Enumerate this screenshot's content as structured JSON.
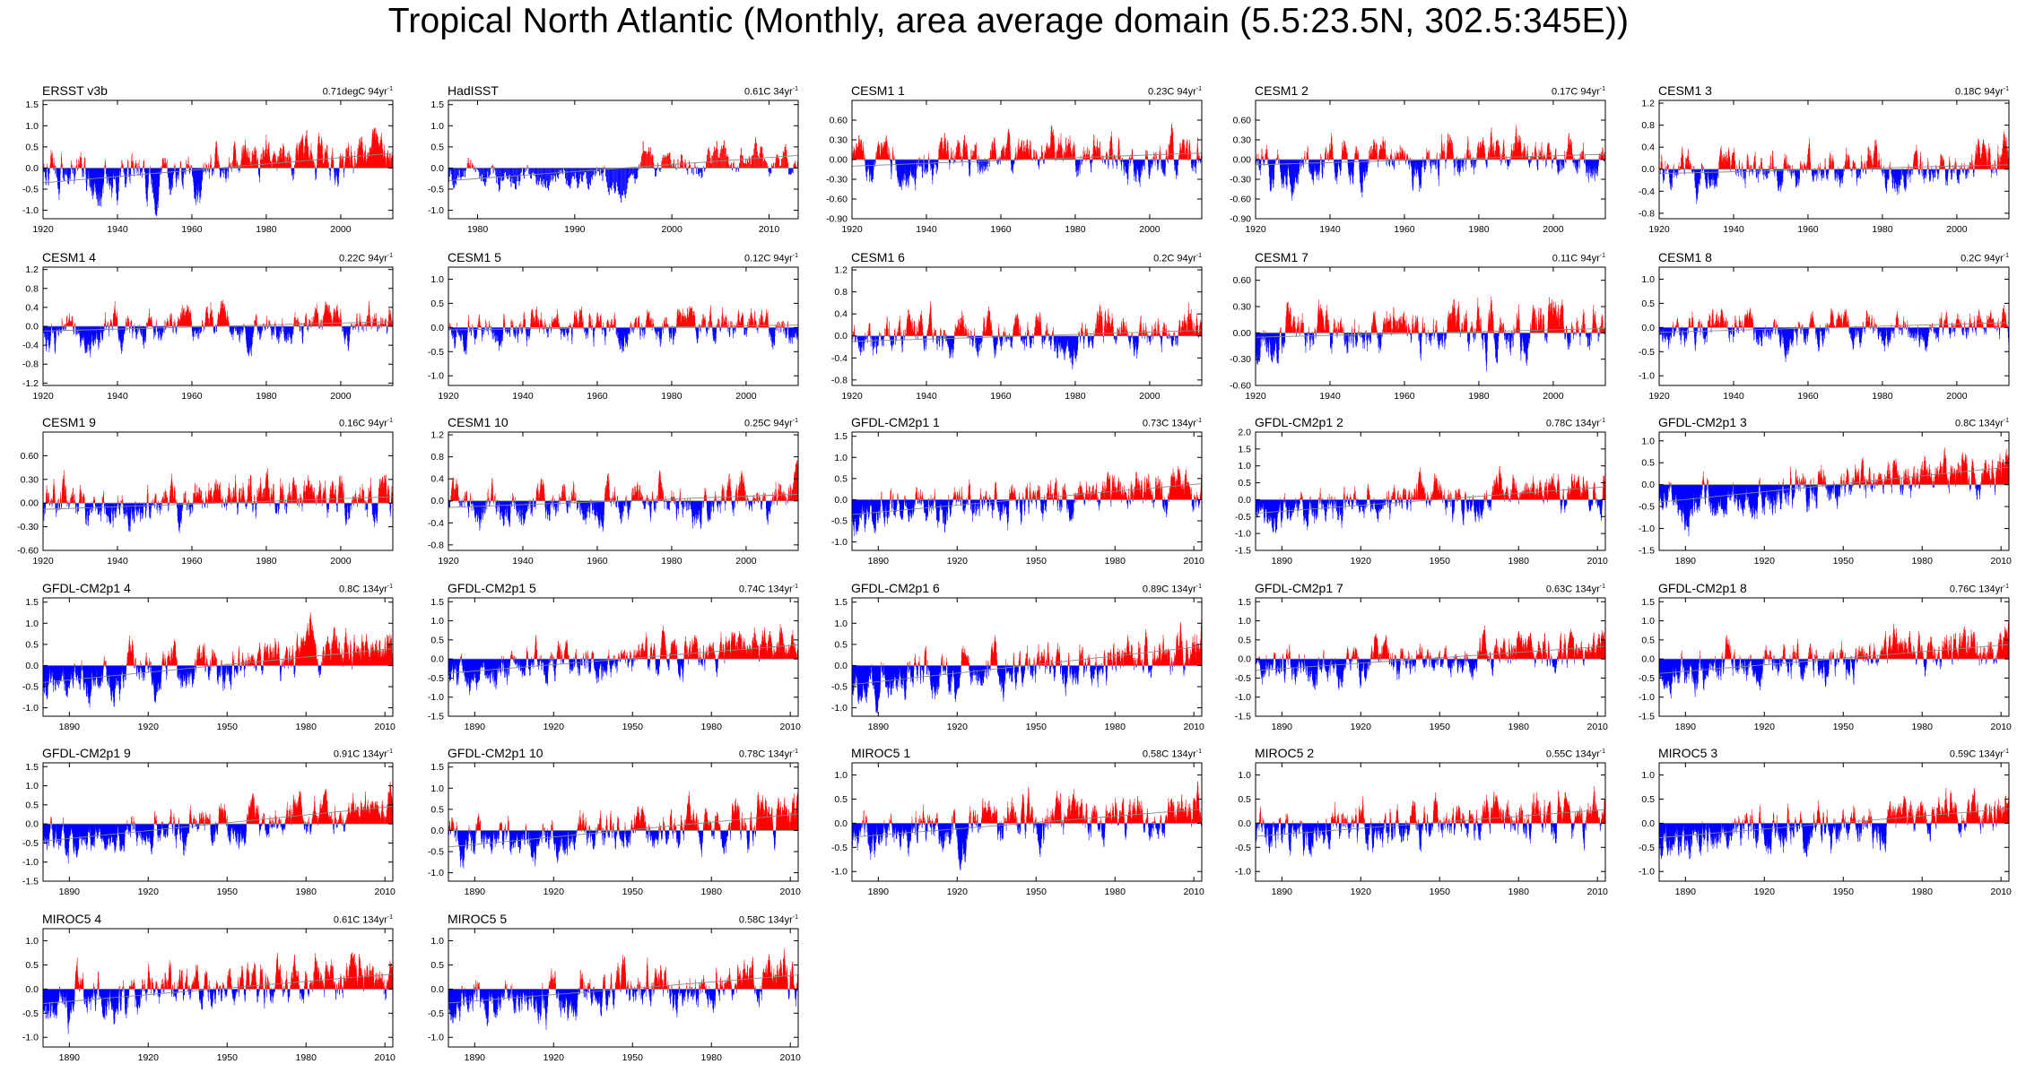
{
  "title": "Tropical North Atlantic (Monthly, area average domain (5.5:23.5N, 302.5:345E))",
  "colors": {
    "positive": "#ff0000",
    "negative": "#0000ff",
    "trend": "#888888",
    "axis": "#000000"
  },
  "chart_data": [
    {
      "type": "bar",
      "name": "ERSST v3b",
      "trend": "0.71degC 94yr",
      "trend_sup": "-1",
      "x_range": [
        1920,
        2014
      ],
      "ylim": [
        -1.2,
        1.6
      ],
      "yticks": [
        "1.5",
        "1.0",
        "0.5",
        "0.0",
        "-0.5",
        "-1.0"
      ],
      "ytick_values": [
        1.5,
        1.0,
        0.5,
        0.0,
        -0.5,
        -1.0
      ],
      "xticks": [
        1920,
        1940,
        1960,
        1980,
        2000
      ],
      "trend_start": -0.35,
      "trend_end": 0.35,
      "amplitude": 0.55,
      "seed": 1
    },
    {
      "type": "bar",
      "name": "HadISST",
      "trend": "0.61C 34yr",
      "trend_sup": "-1",
      "x_range": [
        1977,
        2013
      ],
      "ylim": [
        -1.2,
        1.6
      ],
      "yticks": [
        "1.5",
        "1.0",
        "0.5",
        "0.0",
        "-0.5",
        "-1.0"
      ],
      "ytick_values": [
        1.5,
        1.0,
        0.5,
        0.0,
        -0.5,
        -1.0
      ],
      "xticks": [
        1980,
        1990,
        2000,
        2010
      ],
      "trend_start": -0.3,
      "trend_end": 0.3,
      "amplitude": 0.5,
      "seed": 2
    },
    {
      "type": "bar",
      "name": "CESM1 1",
      "trend": "0.23C 94yr",
      "trend_sup": "-1",
      "x_range": [
        1920,
        2014
      ],
      "ylim": [
        -0.9,
        0.9
      ],
      "yticks": [
        "0.60",
        "0.30",
        "0.00",
        "-0.30",
        "-0.60",
        "-0.90"
      ],
      "ytick_values": [
        0.6,
        0.3,
        0.0,
        -0.3,
        -0.6,
        -0.9
      ],
      "xticks": [
        1920,
        1940,
        1960,
        1980,
        2000
      ],
      "trend_start": -0.1,
      "trend_end": 0.1,
      "amplitude": 0.35,
      "seed": 3
    },
    {
      "type": "bar",
      "name": "CESM1 2",
      "trend": "0.17C 94yr",
      "trend_sup": "-1",
      "x_range": [
        1920,
        2014
      ],
      "ylim": [
        -0.9,
        0.9
      ],
      "yticks": [
        "0.60",
        "0.30",
        "0.00",
        "-0.30",
        "-0.60",
        "-0.90"
      ],
      "ytick_values": [
        0.6,
        0.3,
        0.0,
        -0.3,
        -0.6,
        -0.9
      ],
      "xticks": [
        1920,
        1940,
        1960,
        1980,
        2000
      ],
      "trend_start": -0.08,
      "trend_end": 0.08,
      "amplitude": 0.35,
      "seed": 4
    },
    {
      "type": "bar",
      "name": "CESM1 3",
      "trend": "0.18C 94yr",
      "trend_sup": "-1",
      "x_range": [
        1920,
        2014
      ],
      "ylim": [
        -0.9,
        1.25
      ],
      "yticks": [
        "1.2",
        "0.8",
        "0.4",
        "0.0",
        "-0.4",
        "-0.8"
      ],
      "ytick_values": [
        1.2,
        0.8,
        0.4,
        0.0,
        -0.4,
        -0.8
      ],
      "xticks": [
        1920,
        1940,
        1960,
        1980,
        2000
      ],
      "trend_start": -0.08,
      "trend_end": 0.08,
      "amplitude": 0.4,
      "seed": 5
    },
    {
      "type": "bar",
      "name": "CESM1 4",
      "trend": "0.22C 94yr",
      "trend_sup": "-1",
      "x_range": [
        1920,
        2014
      ],
      "ylim": [
        -1.25,
        1.25
      ],
      "yticks": [
        "1.2",
        "0.8",
        "0.4",
        "0.0",
        "-0.4",
        "-0.8",
        "-1.2"
      ],
      "ytick_values": [
        1.2,
        0.8,
        0.4,
        0.0,
        -0.4,
        -0.8,
        -1.2
      ],
      "xticks": [
        1920,
        1940,
        1960,
        1980,
        2000
      ],
      "trend_start": -0.1,
      "trend_end": 0.1,
      "amplitude": 0.4,
      "seed": 6
    },
    {
      "type": "bar",
      "name": "CESM1 5",
      "trend": "0.12C 94yr",
      "trend_sup": "-1",
      "x_range": [
        1920,
        2014
      ],
      "ylim": [
        -1.2,
        1.25
      ],
      "yticks": [
        "1.0",
        "0.5",
        "0.0",
        "-0.5",
        "-1.0"
      ],
      "ytick_values": [
        1.0,
        0.5,
        0.0,
        -0.5,
        -1.0
      ],
      "xticks": [
        1920,
        1940,
        1960,
        1980,
        2000
      ],
      "trend_start": -0.05,
      "trend_end": 0.05,
      "amplitude": 0.4,
      "seed": 7
    },
    {
      "type": "bar",
      "name": "CESM1 6",
      "trend": "0.2C 94yr",
      "trend_sup": "-1",
      "x_range": [
        1920,
        2014
      ],
      "ylim": [
        -0.9,
        1.25
      ],
      "yticks": [
        "1.2",
        "0.8",
        "0.4",
        "0.0",
        "-0.4",
        "-0.8"
      ],
      "ytick_values": [
        1.2,
        0.8,
        0.4,
        0.0,
        -0.4,
        -0.8
      ],
      "xticks": [
        1920,
        1940,
        1960,
        1980,
        2000
      ],
      "trend_start": -0.1,
      "trend_end": 0.1,
      "amplitude": 0.4,
      "seed": 8
    },
    {
      "type": "bar",
      "name": "CESM1 7",
      "trend": "0.11C 94yr",
      "trend_sup": "-1",
      "x_range": [
        1920,
        2014
      ],
      "ylim": [
        -0.6,
        0.75
      ],
      "yticks": [
        "0.60",
        "0.30",
        "0.00",
        "-0.30",
        "-0.60"
      ],
      "ytick_values": [
        0.6,
        0.3,
        0.0,
        -0.3,
        -0.6
      ],
      "xticks": [
        1920,
        1940,
        1960,
        1980,
        2000
      ],
      "trend_start": -0.05,
      "trend_end": 0.05,
      "amplitude": 0.3,
      "seed": 9
    },
    {
      "type": "bar",
      "name": "CESM1 8",
      "trend": "0.2C 94yr",
      "trend_sup": "-1",
      "x_range": [
        1920,
        2014
      ],
      "ylim": [
        -1.2,
        1.25
      ],
      "yticks": [
        "1.0",
        "0.5",
        "0.0",
        "-0.5",
        "-1.0"
      ],
      "ytick_values": [
        1.0,
        0.5,
        0.0,
        -0.5,
        -1.0
      ],
      "xticks": [
        1920,
        1940,
        1960,
        1980,
        2000
      ],
      "trend_start": -0.1,
      "trend_end": 0.1,
      "amplitude": 0.4,
      "seed": 10
    },
    {
      "type": "bar",
      "name": "CESM1 9",
      "trend": "0.16C 94yr",
      "trend_sup": "-1",
      "x_range": [
        1920,
        2014
      ],
      "ylim": [
        -0.6,
        0.9
      ],
      "yticks": [
        "0.60",
        "0.30",
        "0.00",
        "-0.30",
        "-0.60"
      ],
      "ytick_values": [
        0.6,
        0.3,
        0.0,
        -0.3,
        -0.6
      ],
      "xticks": [
        1920,
        1940,
        1960,
        1980,
        2000
      ],
      "trend_start": -0.08,
      "trend_end": 0.08,
      "amplitude": 0.3,
      "seed": 11
    },
    {
      "type": "bar",
      "name": "CESM1 10",
      "trend": "0.25C 94yr",
      "trend_sup": "-1",
      "x_range": [
        1920,
        2014
      ],
      "ylim": [
        -0.9,
        1.25
      ],
      "yticks": [
        "1.2",
        "0.8",
        "0.4",
        "0.0",
        "-0.4",
        "-0.8"
      ],
      "ytick_values": [
        1.2,
        0.8,
        0.4,
        0.0,
        -0.4,
        -0.8
      ],
      "xticks": [
        1920,
        1940,
        1960,
        1980,
        2000
      ],
      "trend_start": -0.12,
      "trend_end": 0.12,
      "amplitude": 0.4,
      "seed": 12
    },
    {
      "type": "bar",
      "name": "GFDL-CM2p1 1",
      "trend": "0.73C 134yr",
      "trend_sup": "-1",
      "x_range": [
        1880,
        2013
      ],
      "ylim": [
        -1.2,
        1.6
      ],
      "yticks": [
        "1.5",
        "1.0",
        "0.5",
        "0.0",
        "-0.5",
        "-1.0"
      ],
      "ytick_values": [
        1.5,
        1.0,
        0.5,
        0.0,
        -0.5,
        -1.0
      ],
      "xticks": [
        1890,
        1920,
        1950,
        1980,
        2010
      ],
      "trend_start": -0.35,
      "trend_end": 0.38,
      "amplitude": 0.5,
      "seed": 13
    },
    {
      "type": "bar",
      "name": "GFDL-CM2p1 2",
      "trend": "0.78C 134yr",
      "trend_sup": "-1",
      "x_range": [
        1880,
        2013
      ],
      "ylim": [
        -1.5,
        2.0
      ],
      "yticks": [
        "2.0",
        "1.5",
        "1.0",
        "0.5",
        "0.0",
        "-0.5",
        "-1.0",
        "-1.5"
      ],
      "ytick_values": [
        2.0,
        1.5,
        1.0,
        0.5,
        0.0,
        -0.5,
        -1.0,
        -1.5
      ],
      "xticks": [
        1890,
        1920,
        1950,
        1980,
        2010
      ],
      "trend_start": -0.4,
      "trend_end": 0.38,
      "amplitude": 0.55,
      "seed": 14
    },
    {
      "type": "bar",
      "name": "GFDL-CM2p1 3",
      "trend": "0.8C 134yr",
      "trend_sup": "-1",
      "x_range": [
        1880,
        2013
      ],
      "ylim": [
        -1.5,
        1.2
      ],
      "yticks": [
        "1.0",
        "0.5",
        "0.0",
        "-0.5",
        "-1.0",
        "-1.5"
      ],
      "ytick_values": [
        1.0,
        0.5,
        0.0,
        -0.5,
        -1.0,
        -1.5
      ],
      "xticks": [
        1890,
        1920,
        1950,
        1980,
        2010
      ],
      "trend_start": -0.4,
      "trend_end": 0.4,
      "amplitude": 0.5,
      "seed": 15
    },
    {
      "type": "bar",
      "name": "GFDL-CM2p1 4",
      "trend": "0.8C 134yr",
      "trend_sup": "-1",
      "x_range": [
        1880,
        2013
      ],
      "ylim": [
        -1.2,
        1.6
      ],
      "yticks": [
        "1.5",
        "1.0",
        "0.5",
        "0.0",
        "-0.5",
        "-1.0"
      ],
      "ytick_values": [
        1.5,
        1.0,
        0.5,
        0.0,
        -0.5,
        -1.0
      ],
      "xticks": [
        1890,
        1920,
        1950,
        1980,
        2010
      ],
      "trend_start": -0.4,
      "trend_end": 0.4,
      "amplitude": 0.5,
      "seed": 16
    },
    {
      "type": "bar",
      "name": "GFDL-CM2p1 5",
      "trend": "0.74C 134yr",
      "trend_sup": "-1",
      "x_range": [
        1880,
        2013
      ],
      "ylim": [
        -1.5,
        1.6
      ],
      "yticks": [
        "1.5",
        "1.0",
        "0.5",
        "0.0",
        "-0.5",
        "-1.0",
        "-1.5"
      ],
      "ytick_values": [
        1.5,
        1.0,
        0.5,
        0.0,
        -0.5,
        -1.0,
        -1.5
      ],
      "xticks": [
        1890,
        1920,
        1950,
        1980,
        2010
      ],
      "trend_start": -0.37,
      "trend_end": 0.37,
      "amplitude": 0.5,
      "seed": 17
    },
    {
      "type": "bar",
      "name": "GFDL-CM2p1 6",
      "trend": "0.89C 134yr",
      "trend_sup": "-1",
      "x_range": [
        1880,
        2013
      ],
      "ylim": [
        -1.2,
        1.6
      ],
      "yticks": [
        "1.5",
        "1.0",
        "0.5",
        "0.0",
        "-0.5",
        "-1.0"
      ],
      "ytick_values": [
        1.5,
        1.0,
        0.5,
        0.0,
        -0.5,
        -1.0
      ],
      "xticks": [
        1890,
        1920,
        1950,
        1980,
        2010
      ],
      "trend_start": -0.45,
      "trend_end": 0.45,
      "amplitude": 0.5,
      "seed": 18
    },
    {
      "type": "bar",
      "name": "GFDL-CM2p1 7",
      "trend": "0.63C 134yr",
      "trend_sup": "-1",
      "x_range": [
        1880,
        2013
      ],
      "ylim": [
        -1.5,
        1.6
      ],
      "yticks": [
        "1.5",
        "1.0",
        "0.5",
        "0.0",
        "-0.5",
        "-1.0",
        "-1.5"
      ],
      "ytick_values": [
        1.5,
        1.0,
        0.5,
        0.0,
        -0.5,
        -1.0,
        -1.5
      ],
      "xticks": [
        1890,
        1920,
        1950,
        1980,
        2010
      ],
      "trend_start": -0.3,
      "trend_end": 0.33,
      "amplitude": 0.5,
      "seed": 19
    },
    {
      "type": "bar",
      "name": "GFDL-CM2p1 8",
      "trend": "0.76C 134yr",
      "trend_sup": "-1",
      "x_range": [
        1880,
        2013
      ],
      "ylim": [
        -1.5,
        1.6
      ],
      "yticks": [
        "1.5",
        "1.0",
        "0.5",
        "0.0",
        "-0.5",
        "-1.0",
        "-1.5"
      ],
      "ytick_values": [
        1.5,
        1.0,
        0.5,
        0.0,
        -0.5,
        -1.0,
        -1.5
      ],
      "xticks": [
        1890,
        1920,
        1950,
        1980,
        2010
      ],
      "trend_start": -0.38,
      "trend_end": 0.38,
      "amplitude": 0.5,
      "seed": 20
    },
    {
      "type": "bar",
      "name": "GFDL-CM2p1 9",
      "trend": "0.91C 134yr",
      "trend_sup": "-1",
      "x_range": [
        1880,
        2013
      ],
      "ylim": [
        -1.5,
        1.6
      ],
      "yticks": [
        "1.5",
        "1.0",
        "0.5",
        "0.0",
        "-0.5",
        "-1.0",
        "-1.5"
      ],
      "ytick_values": [
        1.5,
        1.0,
        0.5,
        0.0,
        -0.5,
        -1.0,
        -1.5
      ],
      "xticks": [
        1890,
        1920,
        1950,
        1980,
        2010
      ],
      "trend_start": -0.45,
      "trend_end": 0.46,
      "amplitude": 0.5,
      "seed": 21
    },
    {
      "type": "bar",
      "name": "GFDL-CM2p1 10",
      "trend": "0.78C 134yr",
      "trend_sup": "-1",
      "x_range": [
        1880,
        2013
      ],
      "ylim": [
        -1.2,
        1.6
      ],
      "yticks": [
        "1.5",
        "1.0",
        "0.5",
        "0.0",
        "-0.5",
        "-1.0"
      ],
      "ytick_values": [
        1.5,
        1.0,
        0.5,
        0.0,
        -0.5,
        -1.0
      ],
      "xticks": [
        1890,
        1920,
        1950,
        1980,
        2010
      ],
      "trend_start": -0.39,
      "trend_end": 0.39,
      "amplitude": 0.5,
      "seed": 22
    },
    {
      "type": "bar",
      "name": "MIROC5 1",
      "trend": "0.58C 134yr",
      "trend_sup": "-1",
      "x_range": [
        1880,
        2013
      ],
      "ylim": [
        -1.2,
        1.25
      ],
      "yticks": [
        "1.0",
        "0.5",
        "0.0",
        "-0.5",
        "-1.0"
      ],
      "ytick_values": [
        1.0,
        0.5,
        0.0,
        -0.5,
        -1.0
      ],
      "xticks": [
        1890,
        1920,
        1950,
        1980,
        2010
      ],
      "trend_start": -0.29,
      "trend_end": 0.29,
      "amplitude": 0.45,
      "seed": 23
    },
    {
      "type": "bar",
      "name": "MIROC5 2",
      "trend": "0.55C 134yr",
      "trend_sup": "-1",
      "x_range": [
        1880,
        2013
      ],
      "ylim": [
        -1.2,
        1.25
      ],
      "yticks": [
        "1.0",
        "0.5",
        "0.0",
        "-0.5",
        "-1.0"
      ],
      "ytick_values": [
        1.0,
        0.5,
        0.0,
        -0.5,
        -1.0
      ],
      "xticks": [
        1890,
        1920,
        1950,
        1980,
        2010
      ],
      "trend_start": -0.27,
      "trend_end": 0.28,
      "amplitude": 0.45,
      "seed": 24
    },
    {
      "type": "bar",
      "name": "MIROC5 3",
      "trend": "0.59C 134yr",
      "trend_sup": "-1",
      "x_range": [
        1880,
        2013
      ],
      "ylim": [
        -1.2,
        1.25
      ],
      "yticks": [
        "1.0",
        "0.5",
        "0.0",
        "-0.5",
        "-1.0"
      ],
      "ytick_values": [
        1.0,
        0.5,
        0.0,
        -0.5,
        -1.0
      ],
      "xticks": [
        1890,
        1920,
        1950,
        1980,
        2010
      ],
      "trend_start": -0.3,
      "trend_end": 0.3,
      "amplitude": 0.45,
      "seed": 25
    },
    {
      "type": "bar",
      "name": "MIROC5 4",
      "trend": "0.61C 134yr",
      "trend_sup": "-1",
      "x_range": [
        1880,
        2013
      ],
      "ylim": [
        -1.2,
        1.25
      ],
      "yticks": [
        "1.0",
        "0.5",
        "0.0",
        "-0.5",
        "-1.0"
      ],
      "ytick_values": [
        1.0,
        0.5,
        0.0,
        -0.5,
        -1.0
      ],
      "xticks": [
        1890,
        1920,
        1950,
        1980,
        2010
      ],
      "trend_start": -0.3,
      "trend_end": 0.31,
      "amplitude": 0.45,
      "seed": 26
    },
    {
      "type": "bar",
      "name": "MIROC5 5",
      "trend": "0.58C 134yr",
      "trend_sup": "-1",
      "x_range": [
        1880,
        2013
      ],
      "ylim": [
        -1.2,
        1.25
      ],
      "yticks": [
        "1.0",
        "0.5",
        "0.0",
        "-0.5",
        "-1.0"
      ],
      "ytick_values": [
        1.0,
        0.5,
        0.0,
        -0.5,
        -1.0
      ],
      "xticks": [
        1890,
        1920,
        1950,
        1980,
        2010
      ],
      "trend_start": -0.29,
      "trend_end": 0.29,
      "amplitude": 0.45,
      "seed": 27
    }
  ]
}
